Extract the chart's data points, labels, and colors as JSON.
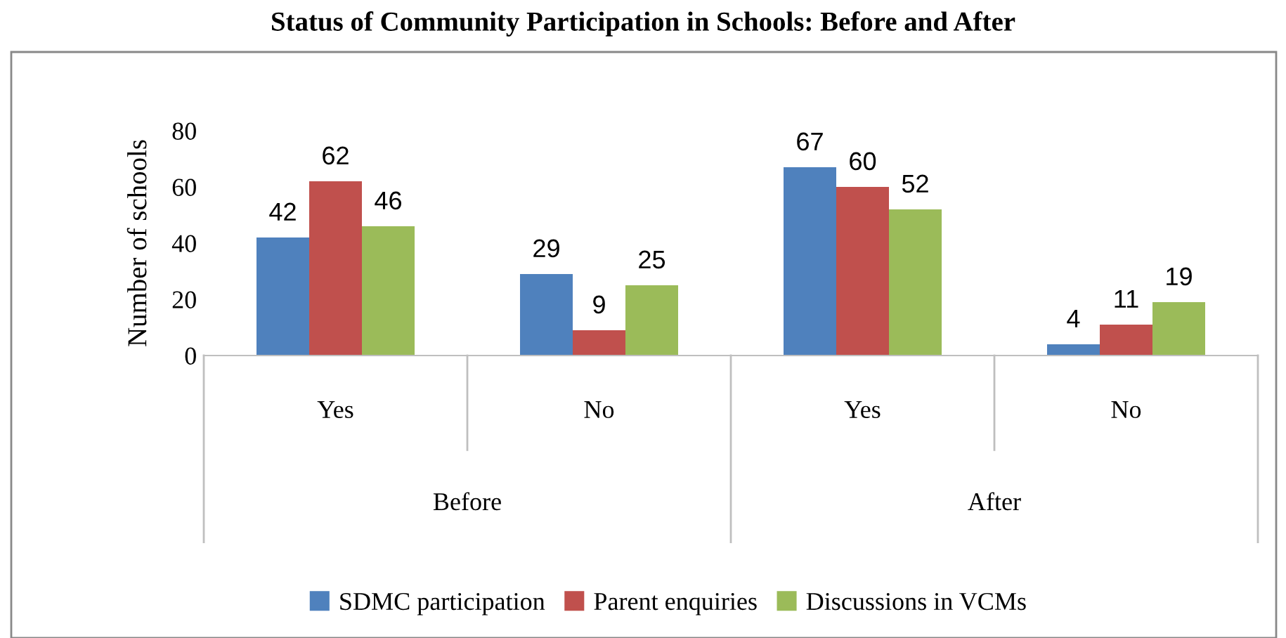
{
  "chart_data": {
    "type": "bar",
    "title": "Status of Community Participation in Schools: Before and After",
    "ylabel": "Number of schools",
    "categories": [
      "Yes",
      "No",
      "Yes",
      "No"
    ],
    "series": [
      {
        "name": "SDMC participation",
        "color": "#4f81bd",
        "values": [
          42,
          29,
          67,
          4
        ]
      },
      {
        "name": "Parent enquiries",
        "color": "#c0504d",
        "values": [
          62,
          9,
          60,
          11
        ]
      },
      {
        "name": "Discussions in VCMs",
        "color": "#9bbb59",
        "values": [
          46,
          25,
          52,
          19
        ]
      }
    ],
    "ylim": [
      0,
      80
    ],
    "yticks": [
      0,
      20,
      40,
      60,
      80
    ],
    "grid": false,
    "legend": "bottom",
    "data_labels": true,
    "annotations": [
      "Before",
      "After"
    ]
  }
}
